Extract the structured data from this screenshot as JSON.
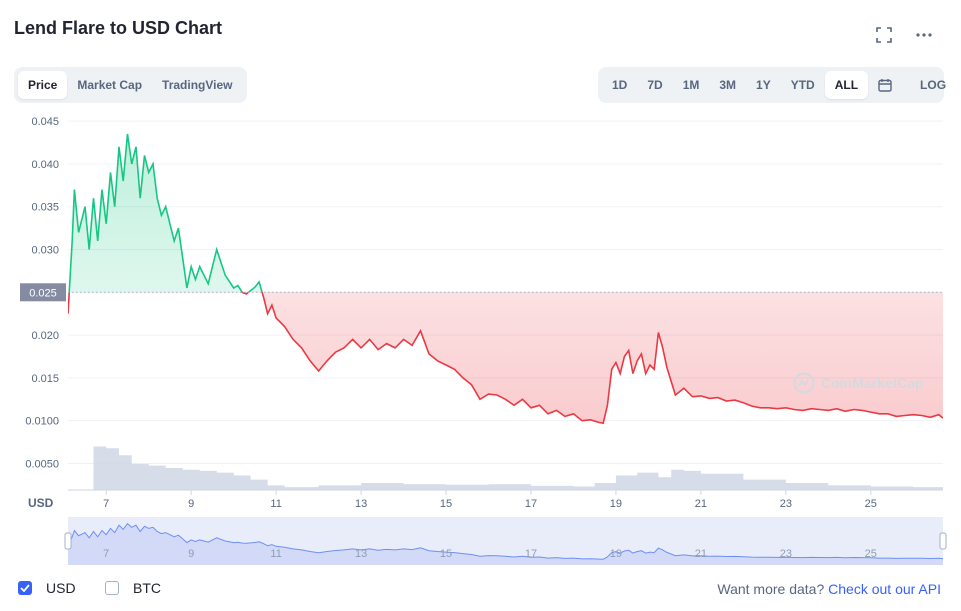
{
  "title": "Lend Flare to USD Chart",
  "tabs": [
    "Price",
    "Market Cap",
    "TradingView"
  ],
  "active_tab": "Price",
  "ranges": [
    "1D",
    "7D",
    "1M",
    "3M",
    "1Y",
    "YTD",
    "ALL"
  ],
  "active_range": "ALL",
  "log_label": "LOG",
  "watermark": "CoinMarketCap",
  "currency_axis_label": "USD",
  "footer": {
    "usd_label": "USD",
    "btc_label": "BTC",
    "more_text": "Want more data?",
    "more_link": "Check out our API"
  },
  "colors": {
    "up": "#16c784",
    "down": "#ea3943",
    "accent": "#3861fb",
    "volume": "#cfd6e4"
  },
  "icons": {
    "fullscreen": "expand-icon",
    "menu": "more-dots-icon",
    "calendar": "calendar-icon",
    "check": "check-icon",
    "logo": "coinmarketcap-logo-icon"
  },
  "chart_data": {
    "type": "line",
    "title": "",
    "xlabel": "",
    "ylabel": "USD",
    "x_tick_labels": [
      "7",
      "9",
      "11",
      "13",
      "15",
      "17",
      "19",
      "21",
      "23",
      "25"
    ],
    "y_tick_labels": [
      "0.0050",
      "0.0100",
      "0.015",
      "0.020",
      "0.025",
      "0.030",
      "0.035",
      "0.040",
      "0.045"
    ],
    "y_ticks": [
      0.005,
      0.01,
      0.015,
      0.02,
      0.025,
      0.03,
      0.035,
      0.04,
      0.045
    ],
    "xlim": [
      6.1,
      26.7
    ],
    "ylim": [
      0.0019,
      0.0463
    ],
    "baseline": 0.025,
    "baseline_label": "0.025",
    "grid": true,
    "series": [
      {
        "x": [
          6.1,
          6.2,
          6.25,
          6.35,
          6.5,
          6.6,
          6.7,
          6.8,
          6.9,
          7.0,
          7.1,
          7.2,
          7.3,
          7.4,
          7.5,
          7.6,
          7.7,
          7.8,
          7.9,
          8.0,
          8.1,
          8.2,
          8.3,
          8.4,
          8.5,
          8.6,
          8.7,
          8.8,
          8.9,
          9.0,
          9.1,
          9.2,
          9.4,
          9.6,
          9.8,
          10.0,
          10.1,
          10.2,
          10.3,
          10.4,
          10.5,
          10.6,
          10.7,
          10.8,
          10.9,
          11.0,
          11.2,
          11.4,
          11.6,
          11.8,
          12.0,
          12.2,
          12.4,
          12.6,
          12.8,
          13.0,
          13.2,
          13.4,
          13.6,
          13.8,
          14.0,
          14.2,
          14.4,
          14.6,
          14.8,
          15.0,
          15.2,
          15.4,
          15.6,
          15.8,
          16.0,
          16.2,
          16.4,
          16.6,
          16.8,
          17.0,
          17.2,
          17.4,
          17.6,
          17.8,
          18.0,
          18.2,
          18.4,
          18.6,
          18.7,
          18.8,
          18.9,
          19.0,
          19.1,
          19.2,
          19.3,
          19.4,
          19.5,
          19.6,
          19.7,
          19.8,
          19.9,
          20.0,
          20.1,
          20.2,
          20.4,
          20.6,
          20.8,
          21.0,
          21.2,
          21.4,
          21.6,
          21.8,
          22.0,
          22.2,
          22.4,
          22.6,
          22.8,
          23.0,
          23.2,
          23.4,
          23.6,
          23.8,
          24.0,
          24.2,
          24.4,
          24.6,
          24.8,
          25.0,
          25.2,
          25.4,
          25.6,
          25.8,
          26.0,
          26.2,
          26.4,
          26.6,
          26.7
        ],
        "y": [
          0.0225,
          0.031,
          0.037,
          0.032,
          0.035,
          0.03,
          0.036,
          0.031,
          0.037,
          0.033,
          0.039,
          0.035,
          0.042,
          0.038,
          0.0435,
          0.04,
          0.042,
          0.036,
          0.041,
          0.039,
          0.04,
          0.036,
          0.034,
          0.035,
          0.033,
          0.031,
          0.0325,
          0.029,
          0.0255,
          0.028,
          0.0265,
          0.028,
          0.026,
          0.03,
          0.027,
          0.0255,
          0.0258,
          0.025,
          0.0248,
          0.0252,
          0.0256,
          0.0262,
          0.0245,
          0.0225,
          0.0235,
          0.022,
          0.021,
          0.0195,
          0.0185,
          0.017,
          0.0158,
          0.017,
          0.018,
          0.0185,
          0.0195,
          0.0185,
          0.0195,
          0.0183,
          0.019,
          0.0185,
          0.0195,
          0.0188,
          0.0205,
          0.0178,
          0.017,
          0.0165,
          0.016,
          0.015,
          0.0142,
          0.0125,
          0.0131,
          0.013,
          0.0125,
          0.0118,
          0.0125,
          0.0115,
          0.0118,
          0.0108,
          0.0112,
          0.0105,
          0.0108,
          0.01,
          0.0101,
          0.0098,
          0.0097,
          0.0118,
          0.016,
          0.0168,
          0.0155,
          0.0175,
          0.0182,
          0.0155,
          0.017,
          0.0178,
          0.0155,
          0.0165,
          0.016,
          0.0203,
          0.0185,
          0.0162,
          0.013,
          0.0138,
          0.0128,
          0.0129,
          0.0126,
          0.0127,
          0.0123,
          0.0124,
          0.0121,
          0.0117,
          0.0115,
          0.0115,
          0.0114,
          0.0115,
          0.0113,
          0.0112,
          0.0114,
          0.0113,
          0.0112,
          0.0114,
          0.0111,
          0.0113,
          0.0112,
          0.011,
          0.0108,
          0.0108,
          0.0105,
          0.0106,
          0.0107,
          0.0106,
          0.0104,
          0.0107,
          0.0103
        ]
      }
    ],
    "volume": {
      "x": [
        6.1,
        6.7,
        7.0,
        7.3,
        7.6,
        8.0,
        8.4,
        8.8,
        9.2,
        9.6,
        10.0,
        10.4,
        10.8,
        11.2,
        12.0,
        13.0,
        14.0,
        15.0,
        16.0,
        17.0,
        18.0,
        18.5,
        19.0,
        19.5,
        20.0,
        20.3,
        20.6,
        21.0,
        22.0,
        23.0,
        24.0,
        25.0,
        26.0,
        26.7
      ],
      "values": [
        0,
        0.75,
        0.72,
        0.6,
        0.45,
        0.42,
        0.38,
        0.35,
        0.33,
        0.3,
        0.25,
        0.18,
        0.08,
        0.05,
        0.08,
        0.12,
        0.1,
        0.09,
        0.1,
        0.07,
        0.06,
        0.12,
        0.25,
        0.3,
        0.22,
        0.35,
        0.33,
        0.28,
        0.18,
        0.12,
        0.08,
        0.06,
        0.05,
        0.05
      ]
    }
  }
}
